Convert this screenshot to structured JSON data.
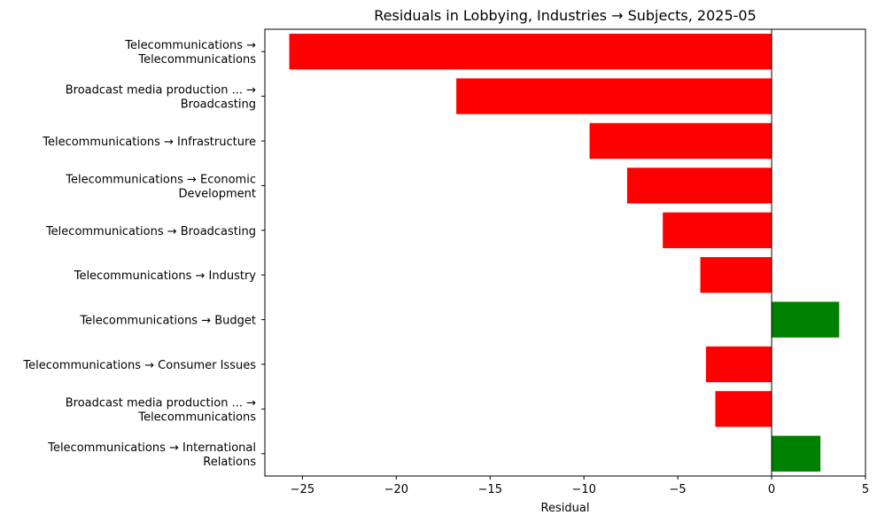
{
  "chart_data": {
    "type": "bar",
    "orientation": "horizontal",
    "title": "Residuals in Lobbying, Industries → Subjects, 2025-05",
    "xlabel": "Residual",
    "ylabel": "",
    "xlim": [
      -27,
      5
    ],
    "xticks": [
      -25,
      -20,
      -15,
      -10,
      -5,
      0,
      5
    ],
    "xtick_labels": [
      "−25",
      "−20",
      "−15",
      "−10",
      "−5",
      "0",
      "5"
    ],
    "grid": false,
    "legend": "none",
    "categories": [
      "Telecommunications → Telecommunications",
      "Broadcast media production ... → Broadcasting",
      "Telecommunications → Infrastructure",
      "Telecommunications → Economic Development",
      "Telecommunications → Broadcasting",
      "Telecommunications → Industry",
      "Telecommunications → Budget",
      "Telecommunications → Consumer Issues",
      "Broadcast media production ... → Telecommunications",
      "Telecommunications → International Relations"
    ],
    "category_label_lines": [
      [
        "Telecommunications →",
        "Telecommunications"
      ],
      [
        "Broadcast media production ... →",
        "Broadcasting"
      ],
      [
        "Telecommunications → Infrastructure"
      ],
      [
        "Telecommunications → Economic",
        "Development"
      ],
      [
        "Telecommunications → Broadcasting"
      ],
      [
        "Telecommunications → Industry"
      ],
      [
        "Telecommunications → Budget"
      ],
      [
        "Telecommunications → Consumer Issues"
      ],
      [
        "Broadcast media production ... →",
        "Telecommunications"
      ],
      [
        "Telecommunications → International",
        "Relations"
      ]
    ],
    "values": [
      -25.7,
      -16.8,
      -9.7,
      -7.7,
      -5.8,
      -3.8,
      3.6,
      -3.5,
      -3.0,
      2.6
    ],
    "colors": {
      "negative": "#ff0000",
      "positive": "#008000"
    }
  }
}
